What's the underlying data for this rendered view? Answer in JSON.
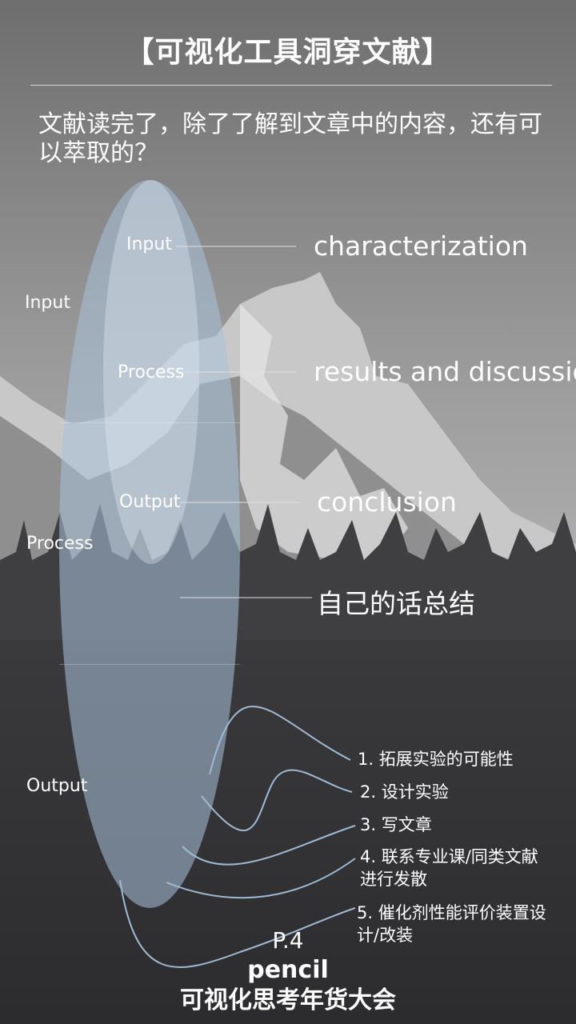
{
  "page": {
    "title": "【可视化工具洞穿文献】",
    "question": "文献读完了，除了了解到文章中的内容，还有可以萃取的？"
  },
  "diagram": {
    "outer_levels": [
      "Input",
      "Process",
      "Output"
    ],
    "inner_levels": [
      "Input",
      "Process",
      "Output"
    ],
    "extractions": [
      "characterization",
      "results and discussion",
      "conclusion",
      "自己的话总结"
    ],
    "outputs": [
      "1. 拓展实验的可能性",
      "2. 设计实验",
      "3. 写文章",
      "4. 联系专业课/同类文献",
      "进行发散",
      "5. 催化剂性能评价装置设",
      "计/改装"
    ],
    "colors": {
      "outer_ellipse": "#a9c2dc",
      "inner_ellipse": "#e6eef7",
      "connector": "#9fbad4"
    }
  },
  "footer": {
    "page": "P.4",
    "author": "pencil",
    "event": "可视化思考年货大会"
  }
}
